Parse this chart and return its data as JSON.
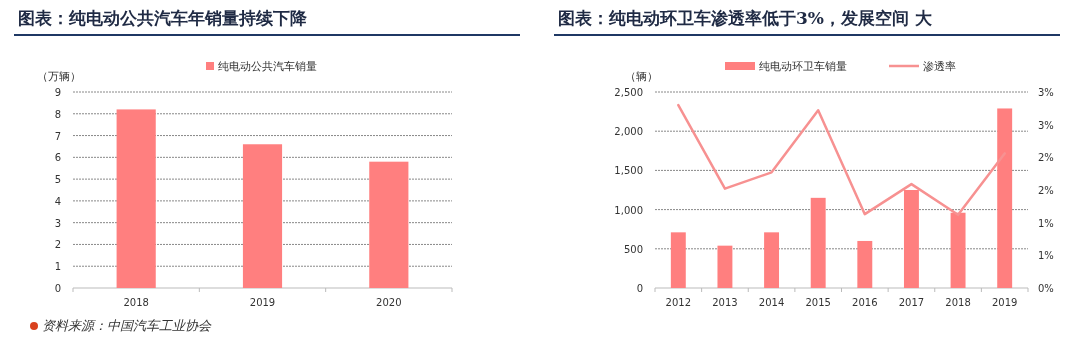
{
  "chart_data": [
    {
      "type": "bar",
      "title": "图表：纯电动公共汽车年销量持续下降",
      "ylabel": "（万辆）",
      "categories": [
        "2018",
        "2019",
        "2020"
      ],
      "series": [
        {
          "name": "纯电动公共汽车销量",
          "color": "#ff7f7f",
          "values": [
            8.2,
            6.6,
            5.8
          ]
        }
      ],
      "ylim": [
        0,
        9
      ],
      "yticks": [
        0,
        1,
        2,
        3,
        4,
        5,
        6,
        7,
        8,
        9
      ],
      "grid": "y",
      "legend": "top",
      "annotations": [
        "资料来源：中国汽车工业协会"
      ]
    },
    {
      "type": "bar",
      "title": "图表：纯电动环卫车渗透率低于3%，发展空间 大",
      "ylabel": "（辆）",
      "categories": [
        "2012",
        "2013",
        "2014",
        "2015",
        "2016",
        "2017",
        "2018",
        "2019"
      ],
      "series": [
        {
          "name": "纯电动环卫车销量",
          "color": "#ff7f7f",
          "values": [
            710,
            540,
            710,
            1150,
            600,
            1250,
            960,
            2290
          ]
        },
        {
          "name": "渗透率",
          "type": "line",
          "axis": "y2",
          "color": "#f79191",
          "values": [
            2.8,
            1.52,
            1.77,
            2.72,
            1.13,
            1.59,
            1.12,
            2.06
          ]
        }
      ],
      "ylim": [
        0,
        2500
      ],
      "yticks": [
        0,
        {
          "value": 500,
          "label": "500"
        },
        {
          "value": 1000,
          "label": "1,000"
        },
        {
          "value": 1500,
          "label": "1,500"
        },
        {
          "value": 2000,
          "label": "2,000"
        },
        {
          "value": 2500,
          "label": "2,500"
        }
      ],
      "y2lim": [
        0,
        3
      ],
      "y2ticks": [
        {
          "value": 0,
          "label": "0%"
        },
        {
          "value": 0.5,
          "label": "1%"
        },
        {
          "value": 1,
          "label": "1%"
        },
        {
          "value": 1.5,
          "label": "2%"
        },
        {
          "value": 2,
          "label": "2%"
        },
        {
          "value": 2.5,
          "label": "3%"
        },
        {
          "value": 3,
          "label": "3%"
        }
      ],
      "grid": "y",
      "legend": "top"
    }
  ]
}
